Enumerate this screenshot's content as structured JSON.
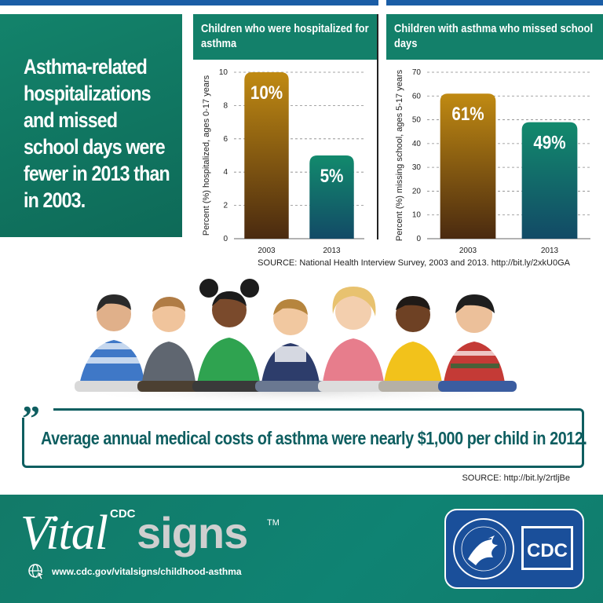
{
  "headline": "Asthma-related hospitalizations and missed school days were fewer in 2013 than in 2003.",
  "chart_data": [
    {
      "type": "bar",
      "title": "Children who were hospitalized for asthma",
      "ylabel": "Percent (%) hospitalized, ages 0-17 years",
      "xlabel": "",
      "categories": [
        "2003",
        "2013"
      ],
      "values": [
        10,
        5
      ],
      "data_labels": [
        "10%",
        "5%"
      ],
      "ylim": [
        0,
        10
      ],
      "yticks": [
        "0",
        "2",
        "4",
        "6",
        "8",
        "10"
      ],
      "grid": true,
      "colors": [
        "#8a5b12",
        "#0f6f5c"
      ]
    },
    {
      "type": "bar",
      "title": "Children with asthma who missed school days",
      "ylabel": "Percent (%) missing school, ages 5-17 years",
      "xlabel": "",
      "categories": [
        "2003",
        "2013"
      ],
      "values": [
        61,
        49
      ],
      "data_labels": [
        "61%",
        "49%"
      ],
      "ylim": [
        0,
        70
      ],
      "yticks": [
        "0",
        "10",
        "20",
        "30",
        "40",
        "50",
        "60",
        "70"
      ],
      "grid": true,
      "colors": [
        "#8a5b12",
        "#0f6f5c"
      ]
    }
  ],
  "source_1": "SOURCE: National Health Interview Survey, 2003 and 2013. http://bit.ly/2xkU0GA",
  "quote": {
    "mark": "”",
    "text": "Average annual medical costs of asthma were nearly $1,000 per child in 2012."
  },
  "source_2": "SOURCE: http://bit.ly/2rtljBe",
  "footer": {
    "brand_cdc": "CDC",
    "brand_vital": "Vital",
    "brand_signs": "signs",
    "brand_tm": "TM",
    "url": "www.cdc.gov/vitalsigns/childhood-asthma",
    "logo_cdc": "CDC",
    "icons": [
      "globe-cursor-icon",
      "hhs-eagle-icon"
    ]
  },
  "colors": {
    "teal": "#13806a",
    "navy": "#1a4f9a",
    "bar_2003": "#8a5b12",
    "bar_2013": "#0f6f5c"
  }
}
